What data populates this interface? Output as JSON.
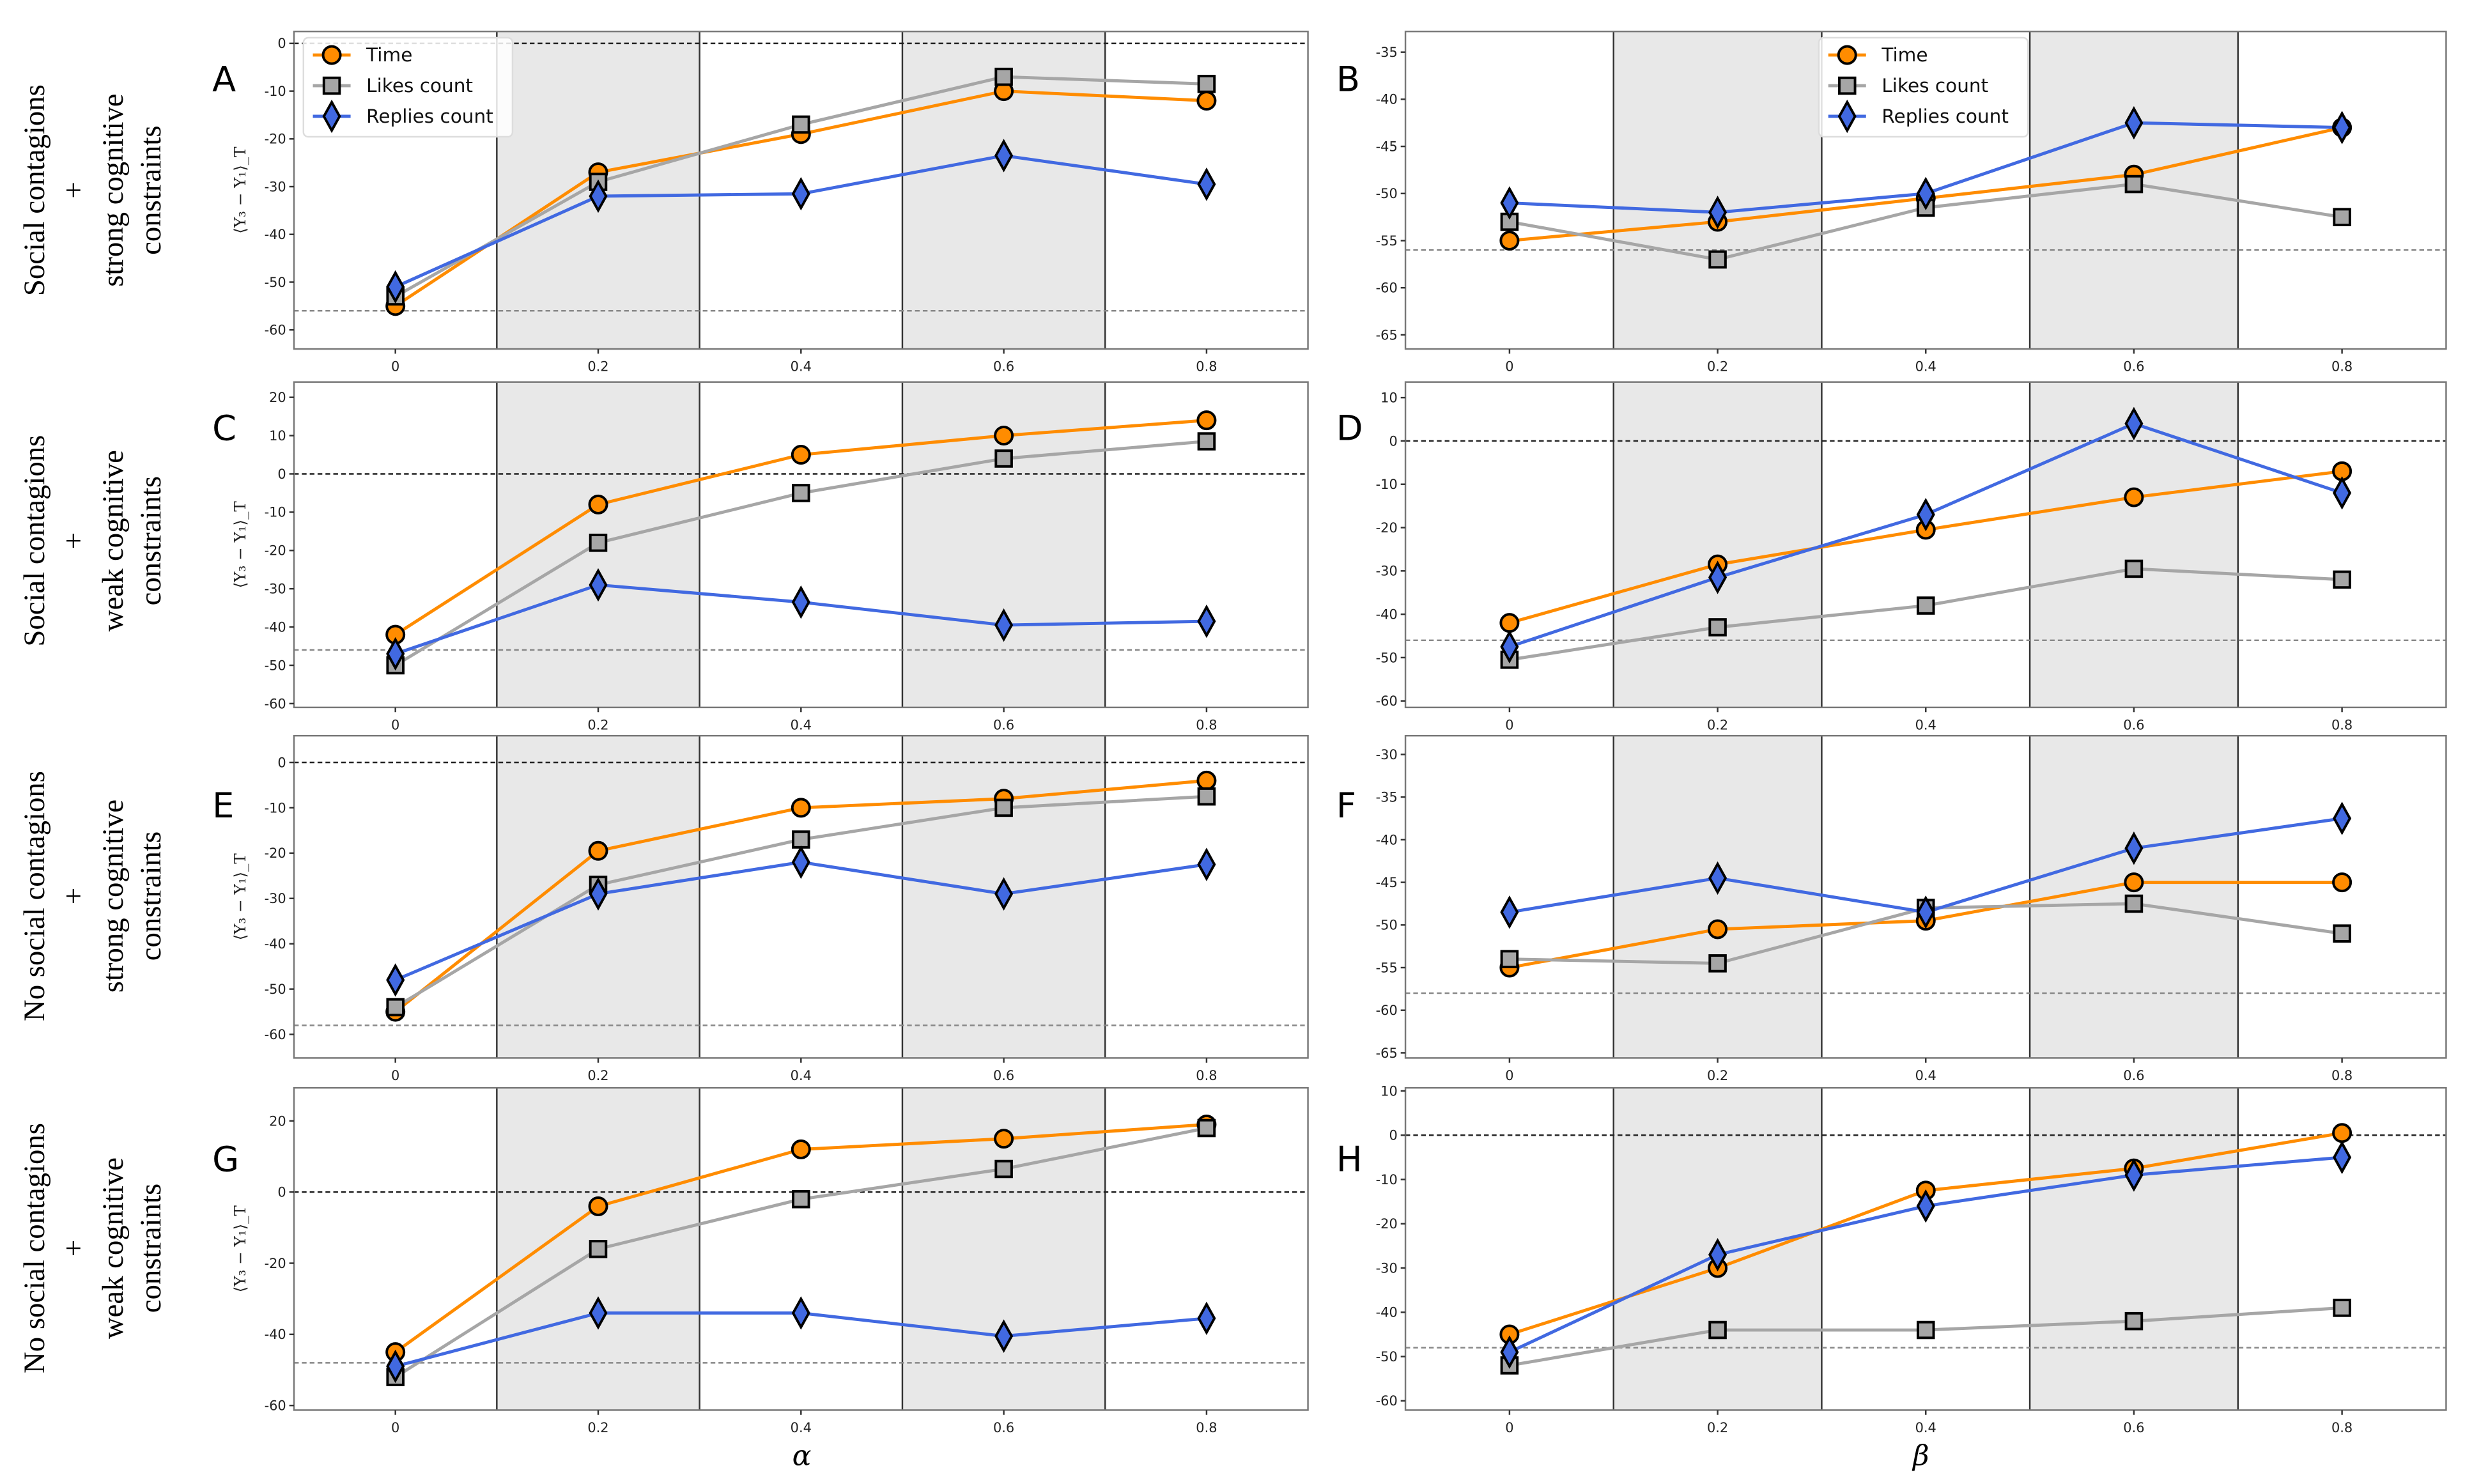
{
  "rows": [
    [
      "Social contagions",
      "+",
      "strong cognitive",
      "constraints"
    ],
    [
      "Social contagions",
      "+",
      "weak cognitive",
      "constraints"
    ],
    [
      "No social contagions",
      "+",
      "strong cognitive",
      "constraints"
    ],
    [
      "No social contagions",
      "+",
      "weak cognitive",
      "constraints"
    ]
  ],
  "ylabel": "⟨Y₃ − Y₁⟩_T",
  "xlabels": {
    "left": "α",
    "right": "β"
  },
  "legend": [
    "Time",
    "Likes count",
    "Replies count"
  ],
  "colors": {
    "Time": "#ff8c00",
    "Likes count": "#a6a6a6",
    "Replies count": "#4169e1",
    "band": "#e8e8e8"
  },
  "chart_data": [
    {
      "panel": "A",
      "type": "line",
      "x": [
        0,
        0.2,
        0.4,
        0.6,
        0.8
      ],
      "xticks": [
        "0",
        "0.2",
        "0.4",
        "0.6",
        "0.8"
      ],
      "xlim": [
        -0.1,
        0.9
      ],
      "ylim": [
        -64,
        2.5
      ],
      "yticks": [
        0,
        -10,
        -20,
        -30,
        -40,
        -50,
        -60
      ],
      "ref_lines": [
        0,
        -56
      ],
      "legend": "top-left",
      "series": [
        {
          "name": "Time",
          "values": [
            -55,
            -27,
            -19,
            -10,
            -12
          ]
        },
        {
          "name": "Likes count",
          "values": [
            -53,
            -29,
            -17,
            -7,
            -8.5
          ]
        },
        {
          "name": "Replies count",
          "values": [
            -51,
            -32,
            -31.5,
            -23.5,
            -29.5
          ]
        }
      ]
    },
    {
      "panel": "B",
      "type": "line",
      "x": [
        0,
        0.2,
        0.4,
        0.6,
        0.8
      ],
      "xticks": [
        "0",
        "0.2",
        "0.4",
        "0.6",
        "0.8"
      ],
      "xlim": [
        -0.1,
        0.9
      ],
      "ylim": [
        -66.5,
        -32.8
      ],
      "yticks": [
        -35,
        -40,
        -45,
        -50,
        -55,
        -60,
        -65
      ],
      "ref_lines": [
        -56
      ],
      "legend": "top-center",
      "series": [
        {
          "name": "Time",
          "values": [
            -55,
            -53,
            -50.5,
            -48,
            -43
          ]
        },
        {
          "name": "Likes count",
          "values": [
            -53,
            -57,
            -51.5,
            -49,
            -52.5
          ]
        },
        {
          "name": "Replies count",
          "values": [
            -51,
            -52,
            -50,
            -42.5,
            -43
          ]
        }
      ]
    },
    {
      "panel": "C",
      "type": "line",
      "x": [
        0,
        0.2,
        0.4,
        0.6,
        0.8
      ],
      "xticks": [
        "0",
        "0.2",
        "0.4",
        "0.6",
        "0.8"
      ],
      "xlim": [
        -0.1,
        0.9
      ],
      "ylim": [
        -61,
        24
      ],
      "yticks": [
        20,
        10,
        0,
        -10,
        -20,
        -30,
        -40,
        -50,
        -60
      ],
      "ref_lines": [
        0,
        -46
      ],
      "series": [
        {
          "name": "Time",
          "values": [
            -42,
            -8,
            5,
            10,
            14
          ]
        },
        {
          "name": "Likes count",
          "values": [
            -50,
            -18,
            -5,
            4,
            8.5
          ]
        },
        {
          "name": "Replies count",
          "values": [
            -47,
            -29,
            -33.5,
            -39.5,
            -38.5
          ]
        }
      ]
    },
    {
      "panel": "D",
      "type": "line",
      "x": [
        0,
        0.2,
        0.4,
        0.6,
        0.8
      ],
      "xticks": [
        "0",
        "0.2",
        "0.4",
        "0.6",
        "0.8"
      ],
      "xlim": [
        -0.1,
        0.9
      ],
      "ylim": [
        -61.5,
        13.6
      ],
      "yticks": [
        10,
        0,
        -10,
        -20,
        -30,
        -40,
        -50,
        -60
      ],
      "ref_lines": [
        0,
        -46
      ],
      "series": [
        {
          "name": "Time",
          "values": [
            -42,
            -28.5,
            -20.5,
            -13,
            -7
          ]
        },
        {
          "name": "Likes count",
          "values": [
            -50.5,
            -43,
            -38,
            -29.5,
            -32
          ]
        },
        {
          "name": "Replies count",
          "values": [
            -47.5,
            -31.5,
            -17,
            4,
            -12
          ]
        }
      ]
    },
    {
      "panel": "E",
      "type": "line",
      "x": [
        0,
        0.2,
        0.4,
        0.6,
        0.8
      ],
      "xticks": [
        "0",
        "0.2",
        "0.4",
        "0.6",
        "0.8"
      ],
      "xlim": [
        -0.1,
        0.9
      ],
      "ylim": [
        -65.2,
        5.9
      ],
      "yticks": [
        0,
        -10,
        -20,
        -30,
        -40,
        -50,
        -60
      ],
      "ref_lines": [
        0,
        -58
      ],
      "series": [
        {
          "name": "Time",
          "values": [
            -55,
            -19.5,
            -10,
            -8,
            -4
          ]
        },
        {
          "name": "Likes count",
          "values": [
            -54,
            -27,
            -17,
            -10,
            -7.5
          ]
        },
        {
          "name": "Replies count",
          "values": [
            -48,
            -29,
            -22,
            -29,
            -22.5
          ]
        }
      ]
    },
    {
      "panel": "F",
      "type": "line",
      "x": [
        0,
        0.2,
        0.4,
        0.6,
        0.8
      ],
      "xticks": [
        "0",
        "0.2",
        "0.4",
        "0.6",
        "0.8"
      ],
      "xlim": [
        -0.1,
        0.9
      ],
      "ylim": [
        -65.6,
        -27.8
      ],
      "yticks": [
        -30,
        -35,
        -40,
        -45,
        -50,
        -55,
        -60,
        -65
      ],
      "ref_lines": [
        -58
      ],
      "series": [
        {
          "name": "Time",
          "values": [
            -55,
            -50.5,
            -49.5,
            -45,
            -45
          ]
        },
        {
          "name": "Likes count",
          "values": [
            -54,
            -54.5,
            -48,
            -47.5,
            -51
          ]
        },
        {
          "name": "Replies count",
          "values": [
            -48.5,
            -44.5,
            -48.5,
            -41,
            -37.5
          ]
        }
      ]
    },
    {
      "panel": "G",
      "type": "line",
      "x": [
        0,
        0.2,
        0.4,
        0.6,
        0.8
      ],
      "xticks": [
        "0",
        "0.2",
        "0.4",
        "0.6",
        "0.8"
      ],
      "xlim": [
        -0.1,
        0.9
      ],
      "ylim": [
        -61.3,
        29.3
      ],
      "yticks": [
        20,
        0,
        -20,
        -40,
        -60
      ],
      "ref_lines": [
        0,
        -48
      ],
      "series": [
        {
          "name": "Time",
          "values": [
            -45,
            -4,
            12,
            15,
            19
          ]
        },
        {
          "name": "Likes count",
          "values": [
            -52,
            -16,
            -2,
            6.5,
            18
          ]
        },
        {
          "name": "Replies count",
          "values": [
            -49,
            -34,
            -34,
            -40.5,
            -35.5
          ]
        }
      ]
    },
    {
      "panel": "H",
      "type": "line",
      "x": [
        0,
        0.2,
        0.4,
        0.6,
        0.8
      ],
      "xticks": [
        "0",
        "0.2",
        "0.4",
        "0.6",
        "0.8"
      ],
      "xlim": [
        -0.1,
        0.9
      ],
      "ylim": [
        -62.1,
        10.7
      ],
      "yticks": [
        10,
        0,
        -10,
        -20,
        -30,
        -40,
        -50,
        -60
      ],
      "ref_lines": [
        0,
        -48
      ],
      "series": [
        {
          "name": "Time",
          "values": [
            -45,
            -30,
            -12.5,
            -7.5,
            0.5
          ]
        },
        {
          "name": "Likes count",
          "values": [
            -52,
            -44,
            -44,
            -42,
            -39
          ]
        },
        {
          "name": "Replies count",
          "values": [
            -49,
            -27,
            -16,
            -9,
            -5
          ]
        }
      ]
    }
  ]
}
